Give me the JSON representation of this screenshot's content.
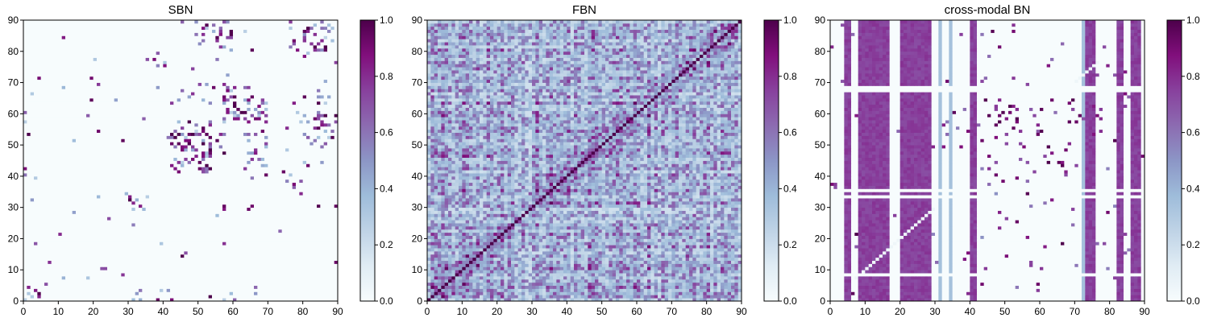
{
  "chart_data": [
    {
      "type": "heatmap",
      "title": "SBN",
      "xlabel": "",
      "ylabel": "",
      "xlim": [
        0,
        90
      ],
      "ylim": [
        0,
        90
      ],
      "xticks": [
        "0",
        "10",
        "20",
        "30",
        "40",
        "50",
        "60",
        "70",
        "80",
        "90"
      ],
      "yticks": [
        "0",
        "10",
        "20",
        "30",
        "40",
        "50",
        "60",
        "70",
        "80",
        "90"
      ],
      "grid_size": 90,
      "background_value": 0.0,
      "clusters": [
        {
          "x": [
            43,
            54
          ],
          "y": [
            41,
            58
          ],
          "density": 0.55
        },
        {
          "x": [
            57,
            70
          ],
          "y": [
            57,
            67
          ],
          "density": 0.5
        },
        {
          "x": [
            48,
            60
          ],
          "y": [
            84,
            90
          ],
          "density": 0.35
        },
        {
          "x": [
            76,
            90
          ],
          "y": [
            80,
            90
          ],
          "density": 0.3
        },
        {
          "x": [
            63,
            70
          ],
          "y": [
            40,
            55
          ],
          "density": 0.3
        },
        {
          "x": [
            29,
            37
          ],
          "y": [
            29,
            35
          ],
          "density": 0.3
        },
        {
          "x": [
            0,
            7
          ],
          "y": [
            0,
            4
          ],
          "density": 0.35
        },
        {
          "x": [
            30,
            44
          ],
          "y": [
            0,
            4
          ],
          "density": 0.3
        },
        {
          "x": [
            34,
            41
          ],
          "y": [
            73,
            80
          ],
          "density": 0.25
        },
        {
          "x": [
            79,
            90
          ],
          "y": [
            50,
            66
          ],
          "density": 0.25
        },
        {
          "x": [
            52,
            61
          ],
          "y": [
            0,
            3
          ],
          "density": 0.3
        }
      ],
      "colorbar": {
        "colormap": "BuPu",
        "range": [
          0.0,
          1.0
        ],
        "ticks": [
          "0.0",
          "0.2",
          "0.4",
          "0.6",
          "0.8",
          "1.0"
        ]
      }
    },
    {
      "type": "heatmap",
      "title": "FBN",
      "xlabel": "",
      "ylabel": "",
      "xlim": [
        0,
        90
      ],
      "ylim": [
        0,
        90
      ],
      "xticks": [
        "0",
        "10",
        "20",
        "30",
        "40",
        "50",
        "60",
        "70",
        "80",
        "90"
      ],
      "yticks": [
        "0",
        "10",
        "20",
        "30",
        "40",
        "50",
        "60",
        "70",
        "80",
        "90"
      ],
      "grid_size": 90,
      "diagonal_value": 1.0,
      "typical_range": [
        0.05,
        0.85
      ],
      "colorbar": {
        "colormap": "BuPu",
        "range": [
          0.0,
          1.0
        ],
        "ticks": [
          "0.0",
          "0.2",
          "0.4",
          "0.6",
          "0.8",
          "1.0"
        ]
      }
    },
    {
      "type": "heatmap",
      "title": "cross-modal BN",
      "xlabel": "",
      "ylabel": "",
      "xlim": [
        0,
        90
      ],
      "ylim": [
        0,
        90
      ],
      "xticks": [
        "0",
        "10",
        "20",
        "30",
        "40",
        "50",
        "60",
        "70",
        "80",
        "90"
      ],
      "yticks": [
        "0",
        "10",
        "20",
        "30",
        "40",
        "50",
        "60",
        "70",
        "80",
        "90"
      ],
      "grid_size": 90,
      "band_value": 0.75,
      "light_band_value": 0.35,
      "purple_bands_x": [
        [
          4,
          6
        ],
        [
          8,
          17
        ],
        [
          20,
          29
        ],
        [
          40,
          42
        ],
        [
          72,
          76
        ],
        [
          82,
          84
        ],
        [
          86,
          89
        ]
      ],
      "light_bands_x": [
        [
          31,
          32
        ],
        [
          34,
          35
        ],
        [
          72,
          73
        ]
      ],
      "white_rows_y": [
        [
          8,
          9
        ],
        [
          33,
          34
        ],
        [
          35,
          36
        ],
        [
          67,
          69
        ]
      ],
      "colorbar": {
        "colormap": "BuPu",
        "range": [
          0.0,
          1.0
        ],
        "ticks": [
          "0.0",
          "0.2",
          "0.4",
          "0.6",
          "0.8",
          "1.0"
        ]
      }
    }
  ]
}
